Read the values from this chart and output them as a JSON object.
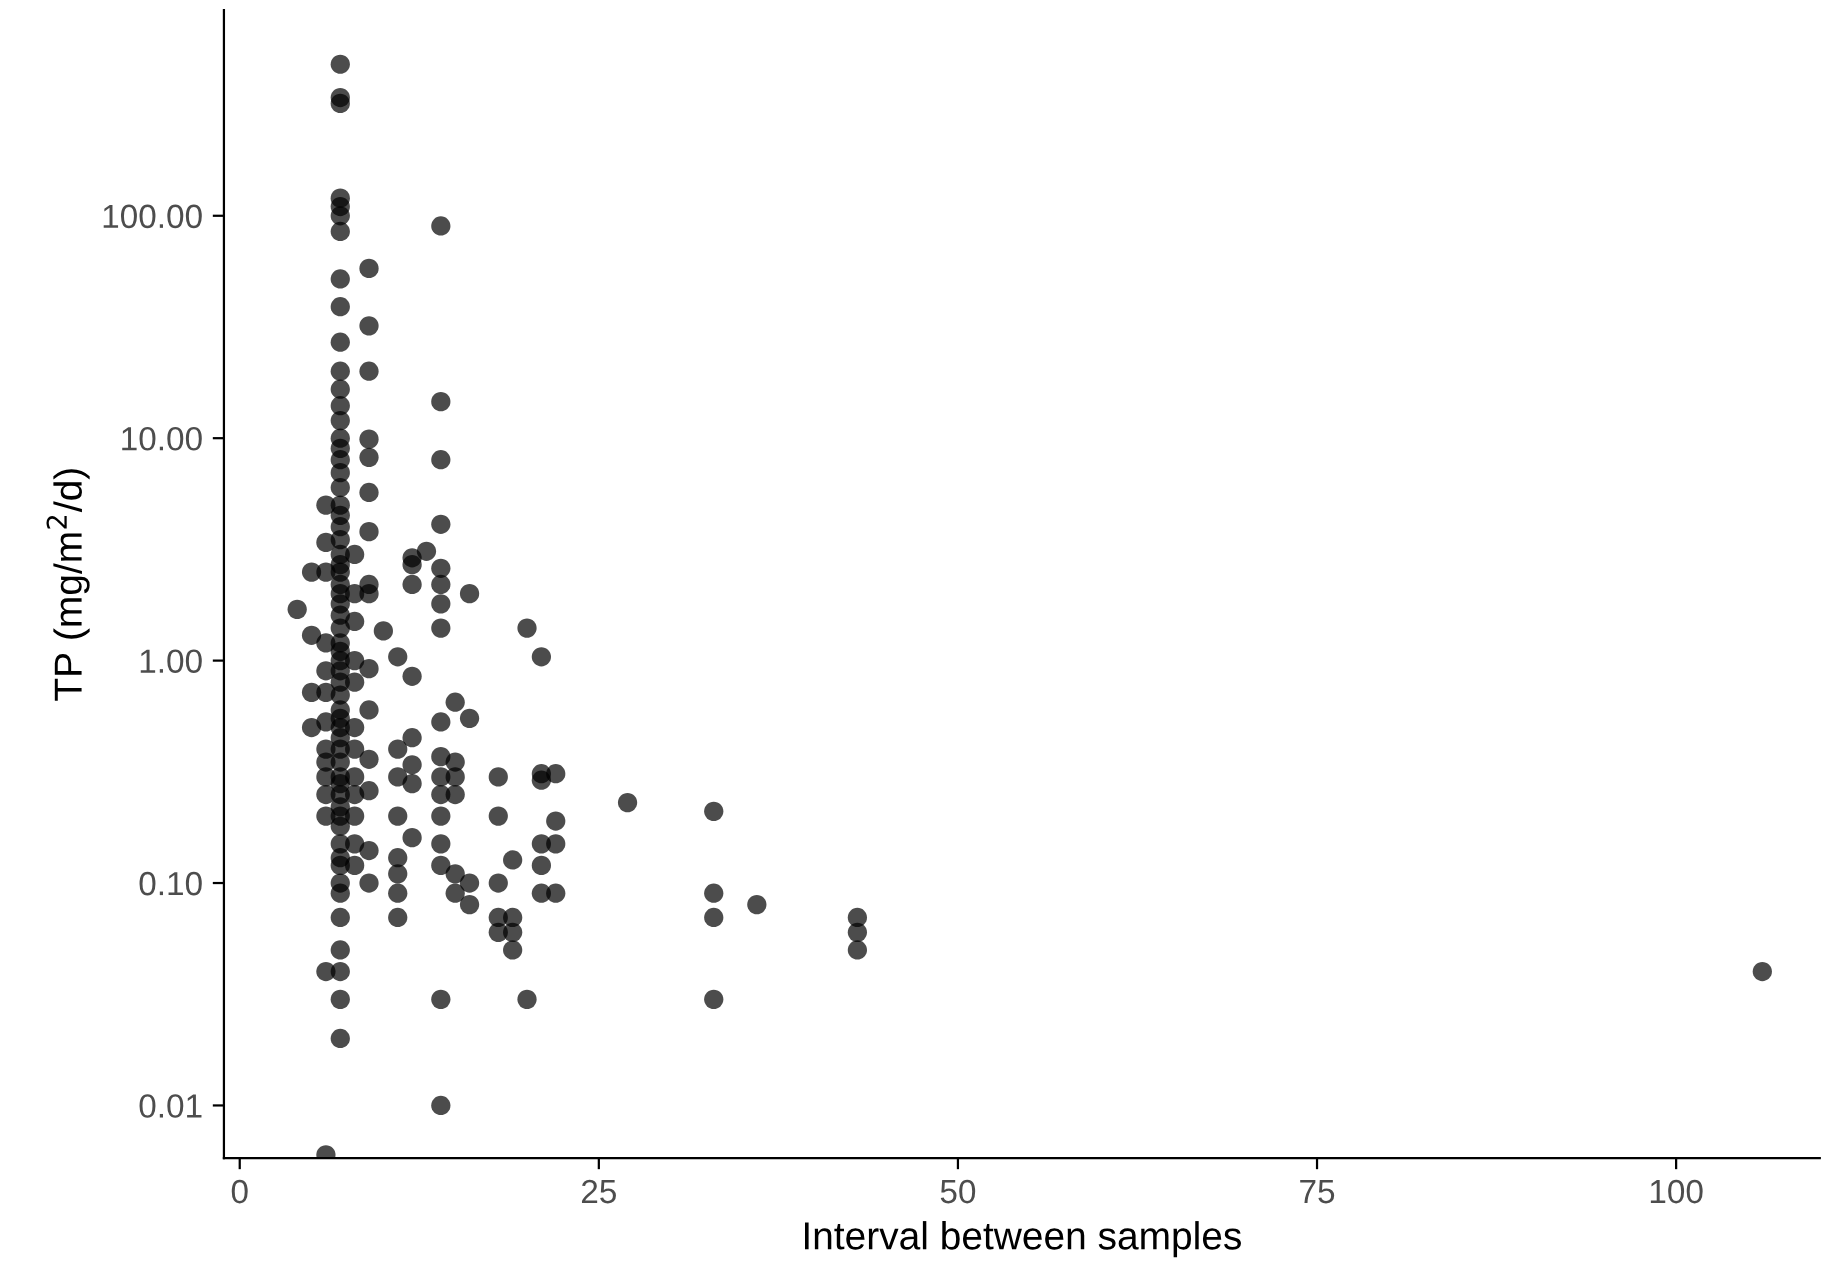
{
  "chart_data": {
    "type": "scatter",
    "xlabel": "Interval between samples",
    "ylabel": "TP (mg/m$^{2}$/d)",
    "log": "y",
    "grid": false,
    "marker": "circle",
    "xlim": [
      -1.1,
      110
    ],
    "xticks": [
      0,
      25,
      50,
      75,
      100
    ],
    "ylim": [
      0.0058,
      840
    ],
    "yticks": [
      {
        "value": 0.01,
        "label": "0.01"
      },
      {
        "value": 0.1,
        "label": "0.10"
      },
      {
        "value": 1,
        "label": "1.00"
      },
      {
        "value": 10,
        "label": "10.00"
      },
      {
        "value": 100,
        "label": "100.00"
      }
    ],
    "series": [
      {
        "color": "#000000",
        "x": [
          7,
          7,
          7,
          7,
          7,
          7,
          7,
          7,
          7,
          7,
          7,
          7,
          7,
          7,
          7,
          7,
          7,
          7,
          7,
          7,
          7,
          7,
          7,
          7,
          7,
          7,
          7,
          7,
          7,
          7,
          7,
          7,
          7,
          7,
          7,
          7,
          7,
          7,
          7,
          7,
          7,
          7,
          7,
          7,
          7,
          7,
          7,
          7,
          7,
          7,
          7,
          7,
          7,
          7,
          7,
          7,
          7,
          7,
          7,
          8,
          8,
          8,
          8,
          8,
          8,
          8,
          8,
          8,
          8,
          8,
          8,
          6,
          6,
          6,
          6,
          6,
          6,
          6,
          6,
          6,
          6,
          6,
          6,
          6,
          6,
          5,
          5,
          5,
          5,
          4,
          9,
          9,
          9,
          9,
          9,
          9,
          9,
          9,
          9,
          9,
          9,
          9,
          9,
          9,
          9,
          10,
          11,
          11,
          11,
          11,
          11,
          11,
          11,
          11,
          12,
          12,
          12,
          12,
          12,
          12,
          12,
          12,
          13,
          14,
          14,
          14,
          14,
          14,
          14,
          14,
          14,
          14,
          14,
          14,
          14,
          14,
          14,
          14,
          14,
          14,
          15,
          15,
          15,
          15,
          15,
          15,
          16,
          16,
          16,
          16,
          18,
          18,
          18,
          18,
          18,
          19,
          19,
          19,
          19,
          20,
          20,
          21,
          21,
          21,
          21,
          21,
          21,
          22,
          22,
          22,
          22,
          27,
          33,
          33,
          33,
          33,
          36,
          43,
          43,
          43,
          106
        ],
        "values": [
          480,
          340,
          320,
          120,
          110,
          100,
          85,
          52,
          39,
          27,
          20,
          16.6,
          14,
          12,
          10,
          9,
          8,
          7,
          6,
          5,
          4.5,
          4,
          3.5,
          3,
          2.7,
          2.5,
          2.2,
          2,
          1.8,
          1.6,
          1.4,
          1.2,
          1.1,
          1,
          0.9,
          0.8,
          0.7,
          0.6,
          0.55,
          0.5,
          0.45,
          0.4,
          0.35,
          0.3,
          0.28,
          0.25,
          0.22,
          0.2,
          0.18,
          0.15,
          0.13,
          0.12,
          0.1,
          0.09,
          0.07,
          0.05,
          0.04,
          0.03,
          0.02,
          3,
          2,
          1.5,
          1,
          0.8,
          0.5,
          0.4,
          0.3,
          0.25,
          0.2,
          0.15,
          0.12,
          5,
          3.4,
          2.5,
          1.2,
          0.9,
          0.72,
          0.53,
          0.4,
          0.35,
          0.3,
          0.25,
          0.2,
          0.04,
          0.006,
          2.5,
          1.3,
          0.72,
          0.5,
          1.7,
          58,
          32,
          20,
          9.9,
          8.2,
          5.7,
          3.8,
          2.2,
          2,
          0.92,
          0.6,
          0.36,
          0.26,
          0.14,
          0.1,
          1.36,
          1.04,
          0.4,
          0.3,
          0.2,
          0.13,
          0.11,
          0.09,
          0.07,
          2.9,
          2.7,
          2.2,
          0.85,
          0.45,
          0.34,
          0.28,
          0.16,
          3.1,
          90,
          14.6,
          8,
          4.1,
          2.6,
          2.2,
          1.8,
          1.4,
          0.53,
          0.37,
          0.3,
          0.25,
          0.2,
          0.15,
          0.12,
          0.03,
          0.01,
          0.65,
          0.35,
          0.3,
          0.25,
          0.11,
          0.09,
          2,
          0.55,
          0.1,
          0.08,
          0.3,
          0.2,
          0.1,
          0.07,
          0.06,
          0.127,
          0.07,
          0.06,
          0.05,
          1.4,
          0.03,
          1.04,
          0.31,
          0.29,
          0.15,
          0.12,
          0.09,
          0.31,
          0.19,
          0.15,
          0.09,
          0.23,
          0.21,
          0.09,
          0.07,
          0.03,
          0.08,
          0.07,
          0.06,
          0.05,
          0.04
        ]
      }
    ]
  }
}
